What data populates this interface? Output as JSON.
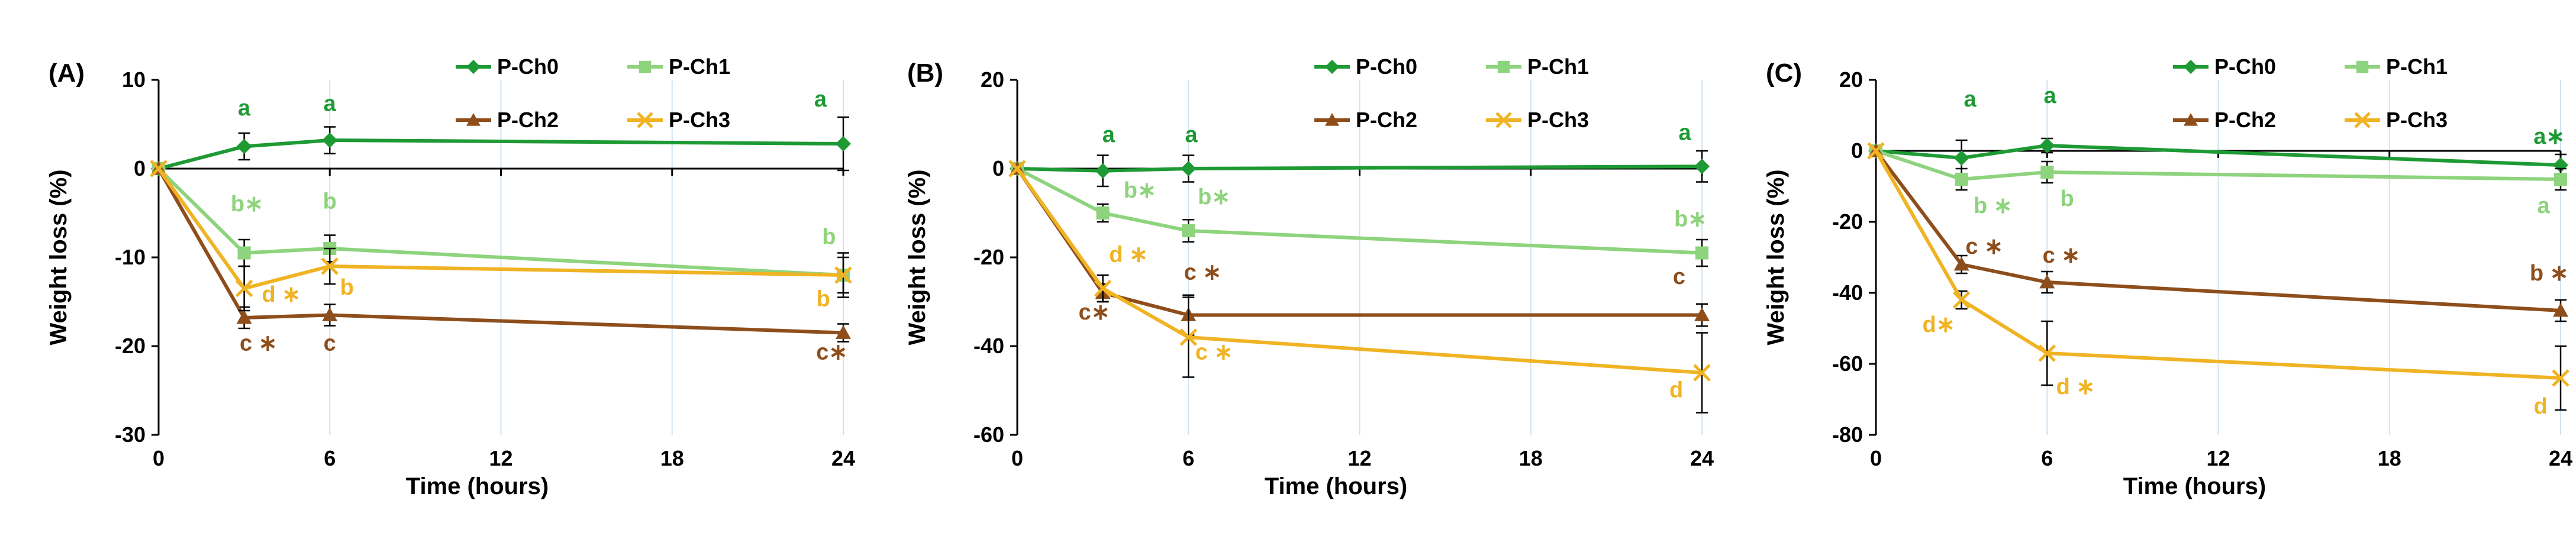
{
  "chart_data": [
    {
      "type": "line",
      "panel_label": "(A)",
      "xlabel": "Time (hours)",
      "ylabel": "Weight loss (%)",
      "xlim": [
        0,
        24
      ],
      "ylim": [
        -30,
        10
      ],
      "xticks": [
        0,
        6,
        12,
        18,
        24
      ],
      "yticks": [
        -30,
        -20,
        -10,
        0,
        10
      ],
      "grid": "vertical",
      "legend_position": "top",
      "series": [
        {
          "name": "P-Ch0",
          "color": "#1e9a34",
          "marker": "diamond",
          "x": [
            0,
            3,
            6,
            24
          ],
          "y": [
            0,
            2.5,
            3.2,
            2.8
          ],
          "err": [
            0,
            1.5,
            1.5,
            3.0
          ]
        },
        {
          "name": "P-Ch1",
          "color": "#8ed37d",
          "marker": "square",
          "x": [
            0,
            3,
            6,
            24
          ],
          "y": [
            0,
            -9.5,
            -9,
            -12
          ],
          "err": [
            0,
            1.5,
            1.5,
            2.5
          ]
        },
        {
          "name": "P-Ch2",
          "color": "#8e4e1c",
          "marker": "triangle",
          "x": [
            0,
            3,
            6,
            24
          ],
          "y": [
            0,
            -16.8,
            -16.5,
            -18.5
          ],
          "err": [
            0,
            1.2,
            1.2,
            1.0
          ]
        },
        {
          "name": "P-Ch3",
          "color": "#f0b323",
          "marker": "x",
          "x": [
            0,
            3,
            6,
            24
          ],
          "y": [
            0,
            -13.5,
            -11,
            -12
          ],
          "err": [
            0,
            2.5,
            2.0,
            2.0
          ]
        }
      ],
      "annotations": [
        {
          "text": "a",
          "x": 3,
          "y": 6,
          "series": "P-Ch0"
        },
        {
          "text": "a",
          "x": 6,
          "y": 6.5,
          "series": "P-Ch0"
        },
        {
          "text": "a",
          "x": 23.2,
          "y": 7,
          "series": "P-Ch0"
        },
        {
          "text": "b∗",
          "x": 3.1,
          "y": -4.8,
          "series": "P-Ch1"
        },
        {
          "text": "b",
          "x": 6,
          "y": -4.5,
          "series": "P-Ch1"
        },
        {
          "text": "b",
          "x": 23.5,
          "y": -8.5,
          "series": "P-Ch1"
        },
        {
          "text": "d ∗",
          "x": 4.3,
          "y": -15,
          "series": "P-Ch3"
        },
        {
          "text": "b",
          "x": 6.6,
          "y": -14.2,
          "series": "P-Ch3"
        },
        {
          "text": "b",
          "x": 23.3,
          "y": -15.5,
          "series": "P-Ch3"
        },
        {
          "text": "c ∗",
          "x": 3.5,
          "y": -20.5,
          "series": "P-Ch2"
        },
        {
          "text": "c",
          "x": 6,
          "y": -20.5,
          "series": "P-Ch2"
        },
        {
          "text": "c∗",
          "x": 23.6,
          "y": -21.5,
          "series": "P-Ch2"
        }
      ]
    },
    {
      "type": "line",
      "panel_label": "(B)",
      "xlabel": "Time (hours)",
      "ylabel": "Weight loss (%)",
      "xlim": [
        0,
        24
      ],
      "ylim": [
        -60,
        20
      ],
      "xticks": [
        0,
        6,
        12,
        18,
        24
      ],
      "yticks": [
        -60,
        -40,
        -20,
        0,
        20
      ],
      "grid": "vertical",
      "legend_position": "top",
      "series": [
        {
          "name": "P-Ch0",
          "color": "#1e9a34",
          "marker": "diamond",
          "x": [
            0,
            3,
            6,
            24
          ],
          "y": [
            0,
            -0.5,
            0,
            0.5
          ],
          "err": [
            0,
            3.5,
            3.0,
            3.5
          ]
        },
        {
          "name": "P-Ch1",
          "color": "#8ed37d",
          "marker": "square",
          "x": [
            0,
            3,
            6,
            24
          ],
          "y": [
            0,
            -10,
            -14,
            -19
          ],
          "err": [
            0,
            2.0,
            2.5,
            3.0
          ]
        },
        {
          "name": "P-Ch2",
          "color": "#8e4e1c",
          "marker": "triangle",
          "x": [
            0,
            3,
            6,
            24
          ],
          "y": [
            0,
            -28,
            -33,
            -33
          ],
          "err": [
            0,
            2.0,
            4.5,
            2.5
          ]
        },
        {
          "name": "P-Ch3",
          "color": "#f0b323",
          "marker": "x",
          "x": [
            0,
            3,
            6,
            24
          ],
          "y": [
            0,
            -27,
            -38,
            -46
          ],
          "err": [
            0,
            3.0,
            9.0,
            9.0
          ]
        }
      ],
      "annotations": [
        {
          "text": "a",
          "x": 3.2,
          "y": 6,
          "series": "P-Ch0"
        },
        {
          "text": "a",
          "x": 6.1,
          "y": 6,
          "series": "P-Ch0"
        },
        {
          "text": "a",
          "x": 23.4,
          "y": 6.5,
          "series": "P-Ch0"
        },
        {
          "text": "b∗",
          "x": 4.3,
          "y": -6.5,
          "series": "P-Ch1"
        },
        {
          "text": "b∗",
          "x": 6.9,
          "y": -8,
          "series": "P-Ch1"
        },
        {
          "text": "b∗",
          "x": 23.6,
          "y": -13,
          "series": "P-Ch1"
        },
        {
          "text": "d ∗",
          "x": 3.9,
          "y": -21,
          "series": "P-Ch3"
        },
        {
          "text": "c ∗",
          "x": 6.5,
          "y": -25,
          "series": "P-Ch2"
        },
        {
          "text": "c",
          "x": 23.2,
          "y": -26,
          "series": "P-Ch2"
        },
        {
          "text": "c∗",
          "x": 2.7,
          "y": -34,
          "series": "P-Ch2"
        },
        {
          "text": "c ∗",
          "x": 6.9,
          "y": -43,
          "series": "P-Ch3"
        },
        {
          "text": "d",
          "x": 23.1,
          "y": -51.5,
          "series": "P-Ch3"
        }
      ]
    },
    {
      "type": "line",
      "panel_label": "(C)",
      "xlabel": "Time (hours)",
      "ylabel": "Weight loss (%)",
      "xlim": [
        0,
        24
      ],
      "ylim": [
        -80,
        20
      ],
      "xticks": [
        0,
        6,
        12,
        18,
        24
      ],
      "yticks": [
        -80,
        -60,
        -40,
        -20,
        0,
        20
      ],
      "grid": "vertical",
      "legend_position": "top",
      "series": [
        {
          "name": "P-Ch0",
          "color": "#1e9a34",
          "marker": "diamond",
          "x": [
            0,
            3,
            6,
            24
          ],
          "y": [
            0,
            -2,
            1.5,
            -4
          ],
          "err": [
            0,
            5.0,
            2.0,
            3.0
          ]
        },
        {
          "name": "P-Ch1",
          "color": "#8ed37d",
          "marker": "square",
          "x": [
            0,
            3,
            6,
            24
          ],
          "y": [
            0,
            -8,
            -6,
            -8
          ],
          "err": [
            0,
            3.0,
            3.0,
            3.0
          ]
        },
        {
          "name": "P-Ch2",
          "color": "#8e4e1c",
          "marker": "triangle",
          "x": [
            0,
            3,
            6,
            24
          ],
          "y": [
            0,
            -32,
            -37,
            -45
          ],
          "err": [
            0,
            2.5,
            3.0,
            3.0
          ]
        },
        {
          "name": "P-Ch3",
          "color": "#f0b323",
          "marker": "x",
          "x": [
            0,
            3,
            6,
            24
          ],
          "y": [
            0,
            -42,
            -57,
            -64
          ],
          "err": [
            0,
            2.5,
            9.0,
            9.0
          ]
        }
      ],
      "annotations": [
        {
          "text": "a",
          "x": 3.3,
          "y": 12.5,
          "series": "P-Ch0"
        },
        {
          "text": "a",
          "x": 6.1,
          "y": 13.5,
          "series": "P-Ch0"
        },
        {
          "text": "a∗",
          "x": 23.6,
          "y": 2,
          "series": "P-Ch0"
        },
        {
          "text": "b ∗",
          "x": 4.1,
          "y": -17.5,
          "series": "P-Ch1"
        },
        {
          "text": "b",
          "x": 6.7,
          "y": -15.5,
          "series": "P-Ch1"
        },
        {
          "text": "a",
          "x": 23.4,
          "y": -17.5,
          "series": "P-Ch1"
        },
        {
          "text": "c ∗",
          "x": 3.8,
          "y": -29,
          "series": "P-Ch2"
        },
        {
          "text": "c ∗",
          "x": 6.5,
          "y": -31.5,
          "series": "P-Ch2"
        },
        {
          "text": "b ∗",
          "x": 23.6,
          "y": -36.5,
          "series": "P-Ch2"
        },
        {
          "text": "d∗",
          "x": 2.2,
          "y": -51,
          "series": "P-Ch3"
        },
        {
          "text": "d ∗",
          "x": 7.0,
          "y": -68.5,
          "series": "P-Ch3"
        },
        {
          "text": "d",
          "x": 23.3,
          "y": -74,
          "series": "P-Ch3"
        }
      ]
    }
  ]
}
